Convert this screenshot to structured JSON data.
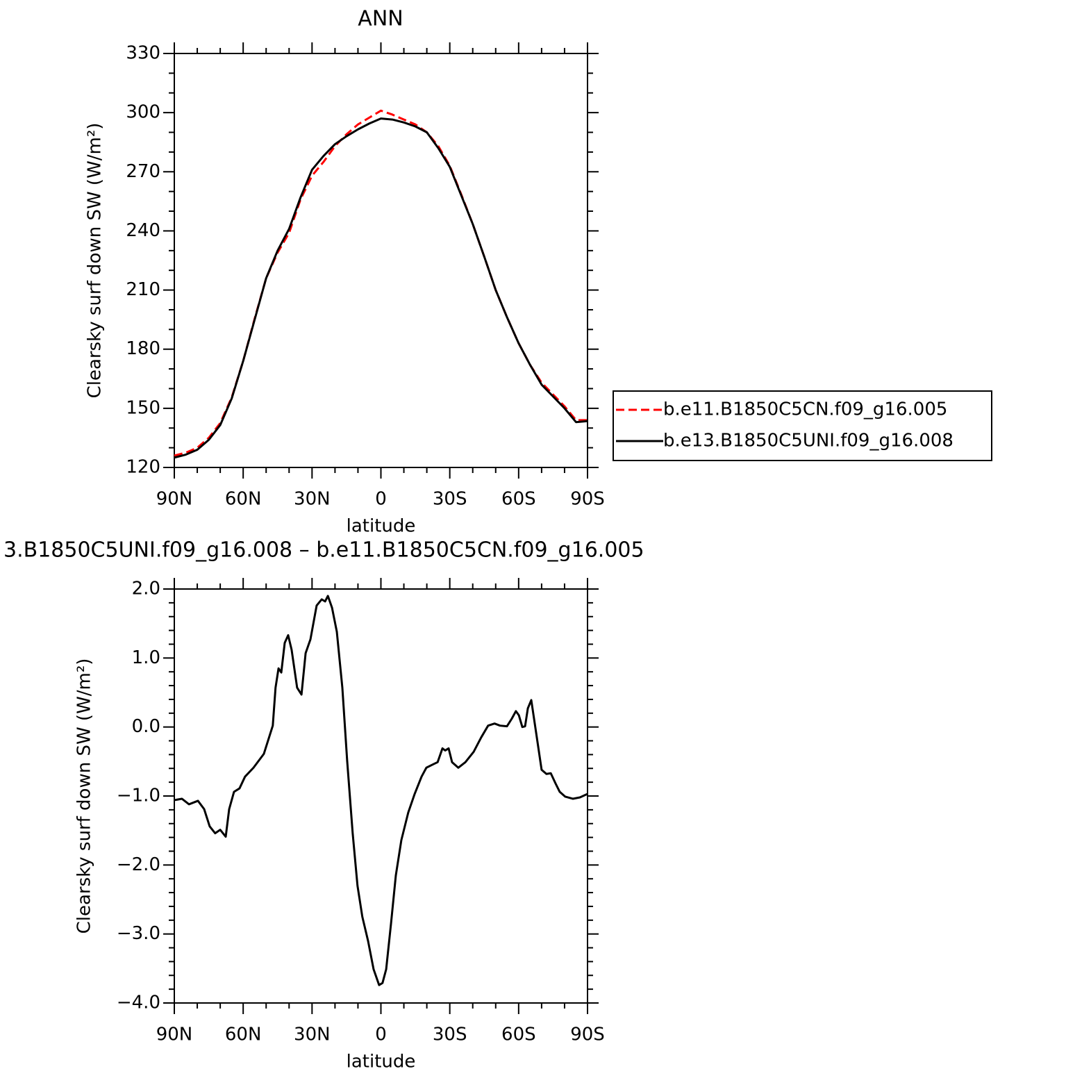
{
  "chart_data": [
    {
      "type": "line",
      "title": "ANN",
      "xlabel": "latitude",
      "ylabel": "Clearsky surf down SW (W/m²)",
      "x": [
        90,
        85,
        80,
        75,
        70,
        65,
        60,
        55,
        50,
        45,
        40,
        35,
        30,
        25,
        20,
        15,
        10,
        5,
        0,
        -5,
        -10,
        -15,
        -20,
        -25,
        -30,
        -35,
        -40,
        -45,
        -50,
        -55,
        -60,
        -65,
        -70,
        -75,
        -80,
        -85,
        -90
      ],
      "series": [
        {
          "name": "b.e11.B1850C5CN.f09_g16.005",
          "color": "#ff0000",
          "style": "dashed",
          "values": [
            126,
            127.5,
            130,
            135,
            142.5,
            155.5,
            174,
            195.5,
            216,
            229,
            239,
            256,
            268,
            275,
            283,
            289,
            294,
            297.5,
            301,
            299,
            296.5,
            294,
            290,
            283,
            273,
            258.5,
            243.5,
            227,
            210,
            196,
            183,
            172,
            163,
            157,
            151,
            144,
            144
          ]
        },
        {
          "name": "b.e13.B1850C5UNI.f09_g16.008",
          "color": "#000000",
          "style": "solid",
          "values": [
            125,
            126.5,
            129,
            134,
            141.5,
            155,
            174,
            195,
            216,
            230,
            241,
            257,
            271,
            278,
            284,
            288,
            291.5,
            294.5,
            297,
            296.5,
            295,
            293,
            290,
            282,
            272.5,
            258,
            243.5,
            227,
            210,
            196,
            183,
            172,
            162,
            156,
            150,
            143,
            143.5
          ]
        }
      ],
      "xlim": [
        90,
        -90
      ],
      "xticks": [
        {
          "value": 90,
          "label": "90N"
        },
        {
          "value": 60,
          "label": "60N"
        },
        {
          "value": 30,
          "label": "30N"
        },
        0,
        {
          "value": -30,
          "label": "30S"
        },
        {
          "value": -60,
          "label": "60S"
        },
        {
          "value": -90,
          "label": "90S"
        }
      ],
      "xminorticks": [
        80,
        70,
        50,
        40,
        20,
        10,
        -10,
        -20,
        -40,
        -50,
        -70,
        -80
      ],
      "ylim": [
        120,
        330
      ],
      "yticks": [
        120,
        150,
        180,
        210,
        240,
        270,
        300,
        330
      ],
      "yminorticks": [
        130,
        140,
        160,
        170,
        190,
        200,
        220,
        230,
        250,
        260,
        280,
        290,
        310,
        320
      ],
      "legend": "right"
    },
    {
      "type": "line",
      "title": "3.B1850C5UNI.f09_g16.008 – b.e11.B1850C5CN.f09_g16.005",
      "xlabel": "latitude",
      "ylabel": "Clearsky surf down SW (W/m²)",
      "color": "#000000",
      "x": [
        90,
        86.7,
        83.6,
        79.7,
        77.0,
        74.6,
        72.2,
        70.0,
        67.6,
        66.1,
        64.0,
        61.6,
        59.2,
        55.5,
        51.0,
        47.1,
        45.9,
        44.6,
        43.4,
        41.9,
        40.4,
        38.9,
        36.5,
        34.6,
        32.8,
        30.7,
        28.0,
        25.8,
        24.3,
        23.1,
        21.3,
        19.2,
        16.8,
        14.7,
        12.3,
        10.2,
        8.1,
        5.6,
        3.2,
        0.8,
        -0.7,
        -2.3,
        -4.4,
        -6.5,
        -8.9,
        -11.9,
        -14.7,
        -17.7,
        -19.8,
        -22.8,
        -24.7,
        -26.8,
        -28.0,
        -29.5,
        -31.0,
        -33.7,
        -36.8,
        -40.4,
        -43.7,
        -46.7,
        -49.5,
        -51.9,
        -54.9,
        -57.0,
        -58.8,
        -60.1,
        -61.6,
        -62.8,
        -64.0,
        -65.5,
        -67.6,
        -70.0,
        -72.1,
        -74.0,
        -76.1,
        -77.9,
        -80.3,
        -83.6,
        -86.7,
        -90
      ],
      "values": [
        -1.06,
        -1.04,
        -1.12,
        -1.07,
        -1.19,
        -1.44,
        -1.54,
        -1.49,
        -1.59,
        -1.19,
        -0.94,
        -0.89,
        -0.72,
        -0.59,
        -0.39,
        0.02,
        0.57,
        0.85,
        0.79,
        1.22,
        1.33,
        1.12,
        0.57,
        0.47,
        1.07,
        1.27,
        1.76,
        1.85,
        1.82,
        1.9,
        1.73,
        1.38,
        0.57,
        -0.49,
        -1.54,
        -2.3,
        -2.75,
        -3.1,
        -3.51,
        -3.74,
        -3.71,
        -3.51,
        -2.85,
        -2.15,
        -1.64,
        -1.24,
        -0.97,
        -0.72,
        -0.59,
        -0.54,
        -0.51,
        -0.31,
        -0.34,
        -0.31,
        -0.51,
        -0.59,
        -0.51,
        -0.36,
        -0.15,
        0.02,
        0.05,
        0.02,
        0.01,
        0.12,
        0.23,
        0.17,
        0.0,
        0.01,
        0.27,
        0.39,
        -0.08,
        -0.62,
        -0.68,
        -0.67,
        -0.82,
        -0.94,
        -1.01,
        -1.04,
        -1.02,
        -0.97
      ],
      "xlim": [
        90,
        -90
      ],
      "xticks": [
        {
          "value": 90,
          "label": "90N"
        },
        {
          "value": 60,
          "label": "60N"
        },
        {
          "value": 30,
          "label": "30N"
        },
        0,
        {
          "value": -30,
          "label": "30S"
        },
        {
          "value": -60,
          "label": "60S"
        },
        {
          "value": -90,
          "label": "90S"
        }
      ],
      "xminorticks": [
        80,
        70,
        50,
        40,
        20,
        10,
        -10,
        -20,
        -40,
        -50,
        -70,
        -80
      ],
      "ylim": [
        -4,
        2
      ],
      "yticks": [
        {
          "value": -4,
          "label": "−4.0"
        },
        {
          "value": -3,
          "label": "−3.0"
        },
        {
          "value": -2,
          "label": "−2.0"
        },
        {
          "value": -1,
          "label": "−1.0"
        },
        {
          "value": 0,
          "label": "0.0"
        },
        {
          "value": 1,
          "label": "1.0"
        },
        {
          "value": 2,
          "label": "2.0"
        }
      ],
      "yminorticks": [
        -3.8,
        -3.6,
        -3.4,
        -3.2,
        -2.8,
        -2.6,
        -2.4,
        -2.2,
        -1.8,
        -1.6,
        -1.4,
        -1.2,
        -0.8,
        -0.6,
        -0.4,
        -0.2,
        0.2,
        0.4,
        0.6,
        0.8,
        1.2,
        1.4,
        1.6,
        1.8
      ]
    }
  ]
}
